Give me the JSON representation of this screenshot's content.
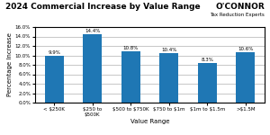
{
  "chart_data": {
    "type": "bar",
    "title": "2024 Commercial Increase by Value Range",
    "categories": [
      "< $250K",
      "$250 to\n$500K",
      "$500 to $750K",
      "$750 to $1m",
      "$1m to $1.5m",
      ">$1.5M"
    ],
    "values": [
      9.9,
      14.4,
      10.8,
      10.4,
      8.3,
      10.6
    ],
    "value_labels": [
      "9.9%",
      "14.4%",
      "10.8%",
      "10.4%",
      "8.3%",
      "10.6%"
    ],
    "data_labels": true,
    "xlabel": "Value Range",
    "ylabel": "Percentage Increase",
    "ylim": [
      0,
      16
    ],
    "yticks": [
      {
        "value": 0.0,
        "label": "0.0%"
      },
      {
        "value": 2.0,
        "label": "2.0%"
      },
      {
        "value": 4.0,
        "label": "4.0%"
      },
      {
        "value": 6.0,
        "label": "6.0%"
      },
      {
        "value": 8.0,
        "label": "8.0%"
      },
      {
        "value": 10.0,
        "label": "10.0%"
      },
      {
        "value": 12.0,
        "label": "12.0%"
      },
      {
        "value": 14.0,
        "label": "14.0%"
      },
      {
        "value": 16.0,
        "label": "16.0%"
      }
    ],
    "grid": true,
    "annotations": [
      "O'CONNOR",
      "Tax Reduction Experts"
    ]
  }
}
